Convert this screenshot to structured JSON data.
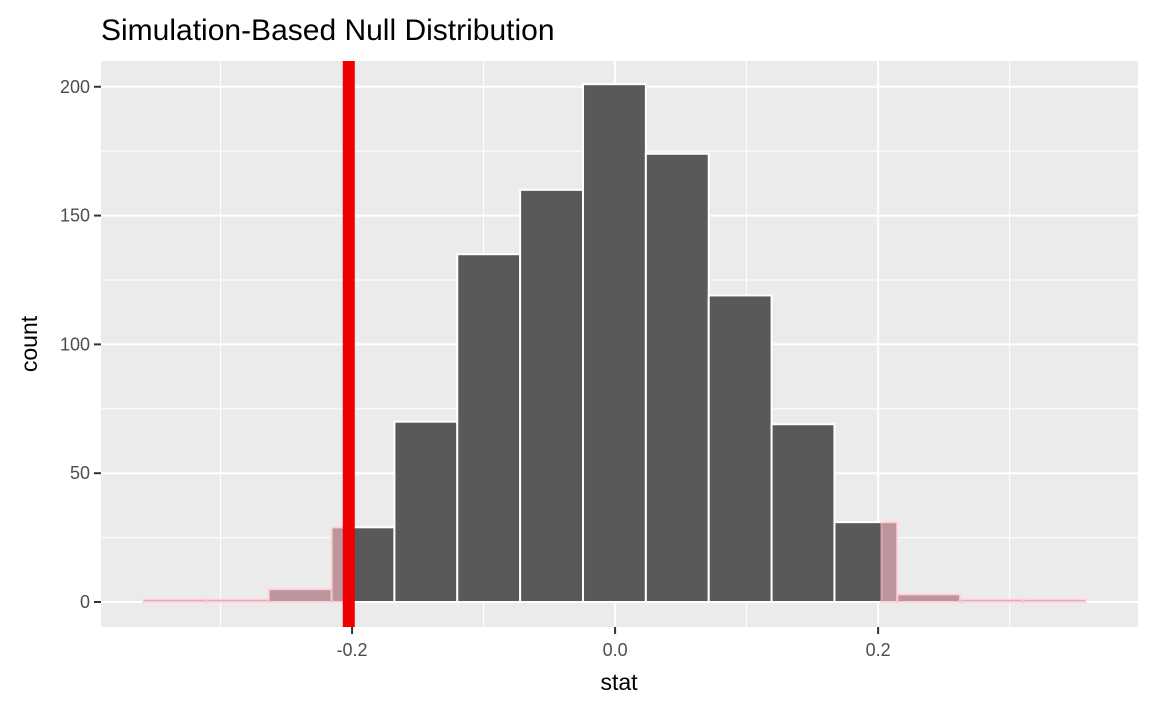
{
  "chart_data": {
    "type": "bar",
    "title": "Simulation-Based Null Distribution",
    "xlabel": "stat",
    "ylabel": "count",
    "xlim": [
      -0.3909,
      0.3976
    ],
    "ylim": [
      -9.7,
      210
    ],
    "x_ticks": [
      -0.2,
      0.0,
      0.2
    ],
    "x_tick_labels": [
      "-0.2",
      "0.0",
      "0.2"
    ],
    "y_ticks": [
      0,
      50,
      100,
      150,
      200
    ],
    "y_tick_labels": [
      "0",
      "50",
      "100",
      "150",
      "200"
    ],
    "grid": true,
    "bins": [
      {
        "x0": -0.359,
        "x1": -0.3112,
        "count": 1
      },
      {
        "x0": -0.3112,
        "x1": -0.2634,
        "count": 1
      },
      {
        "x0": -0.2634,
        "x1": -0.2156,
        "count": 5
      },
      {
        "x0": -0.2156,
        "x1": -0.1678,
        "count": 29
      },
      {
        "x0": -0.1678,
        "x1": -0.12,
        "count": 70
      },
      {
        "x0": -0.12,
        "x1": -0.0722,
        "count": 135
      },
      {
        "x0": -0.0722,
        "x1": -0.0244,
        "count": 160
      },
      {
        "x0": -0.0244,
        "x1": 0.0234,
        "count": 201
      },
      {
        "x0": 0.0234,
        "x1": 0.0712,
        "count": 174
      },
      {
        "x0": 0.0712,
        "x1": 0.119,
        "count": 119
      },
      {
        "x0": 0.119,
        "x1": 0.1668,
        "count": 69
      },
      {
        "x0": 0.1668,
        "x1": 0.2146,
        "count": 31
      },
      {
        "x0": 0.2146,
        "x1": 0.2624,
        "count": 3
      },
      {
        "x0": 0.2624,
        "x1": 0.3102,
        "count": 1
      },
      {
        "x0": 0.3102,
        "x1": 0.358,
        "count": 1
      }
    ],
    "observed_stat": -0.2025,
    "shaded_region_cutoffs": [
      -0.2025,
      0.2025
    ],
    "colors": {
      "panel_background": "#ebebeb",
      "grid": "#ffffff",
      "bar_fill": "#595959",
      "bar_outline": "#ffffff",
      "shade": "#ffc0cb",
      "shade_alpha": 0.6,
      "observed_line": "#ee0000"
    }
  }
}
